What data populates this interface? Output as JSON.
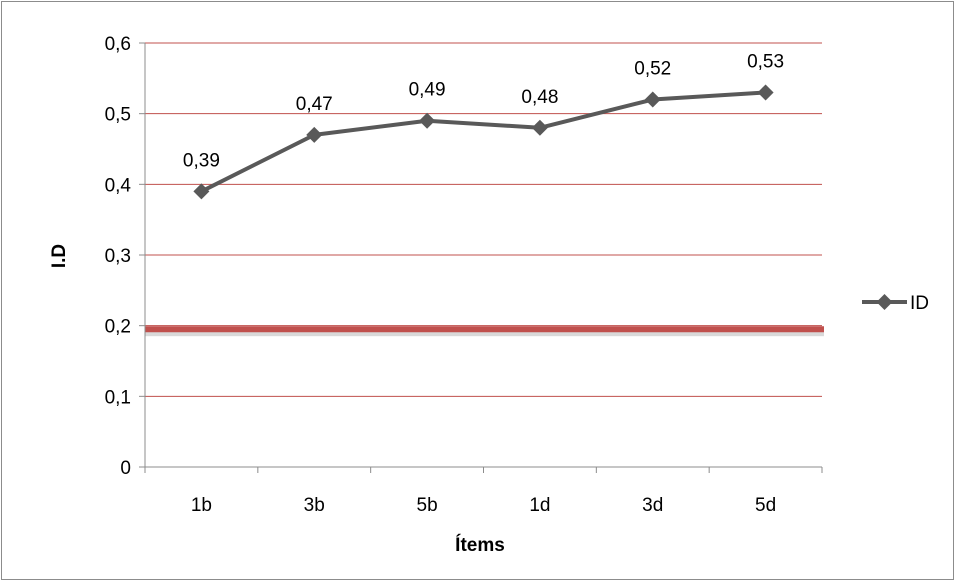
{
  "chart_data": {
    "type": "line",
    "categories": [
      "1b",
      "3b",
      "5b",
      "1d",
      "3d",
      "5d"
    ],
    "series": [
      {
        "name": "ID",
        "values": [
          0.39,
          0.47,
          0.49,
          0.48,
          0.52,
          0.53
        ],
        "data_labels": [
          "0,39",
          "0,47",
          "0,49",
          "0,48",
          "0,52",
          "0,53"
        ]
      }
    ],
    "xlabel": "Ítems",
    "ylabel": "I.D",
    "ylim": [
      0,
      0.6
    ],
    "yticks": [
      {
        "value": 0,
        "label": "0"
      },
      {
        "value": 0.1,
        "label": "0,1"
      },
      {
        "value": 0.2,
        "label": "0,2"
      },
      {
        "value": 0.3,
        "label": "0,3"
      },
      {
        "value": 0.4,
        "label": "0,4"
      },
      {
        "value": 0.5,
        "label": "0,5"
      },
      {
        "value": 0.6,
        "label": "0,6"
      }
    ],
    "reference_line": {
      "value": 0.195,
      "color": "#c0504d"
    },
    "grid": true,
    "grid_color": "#c0504d",
    "series_color": "#595959",
    "legend_position": "right"
  }
}
